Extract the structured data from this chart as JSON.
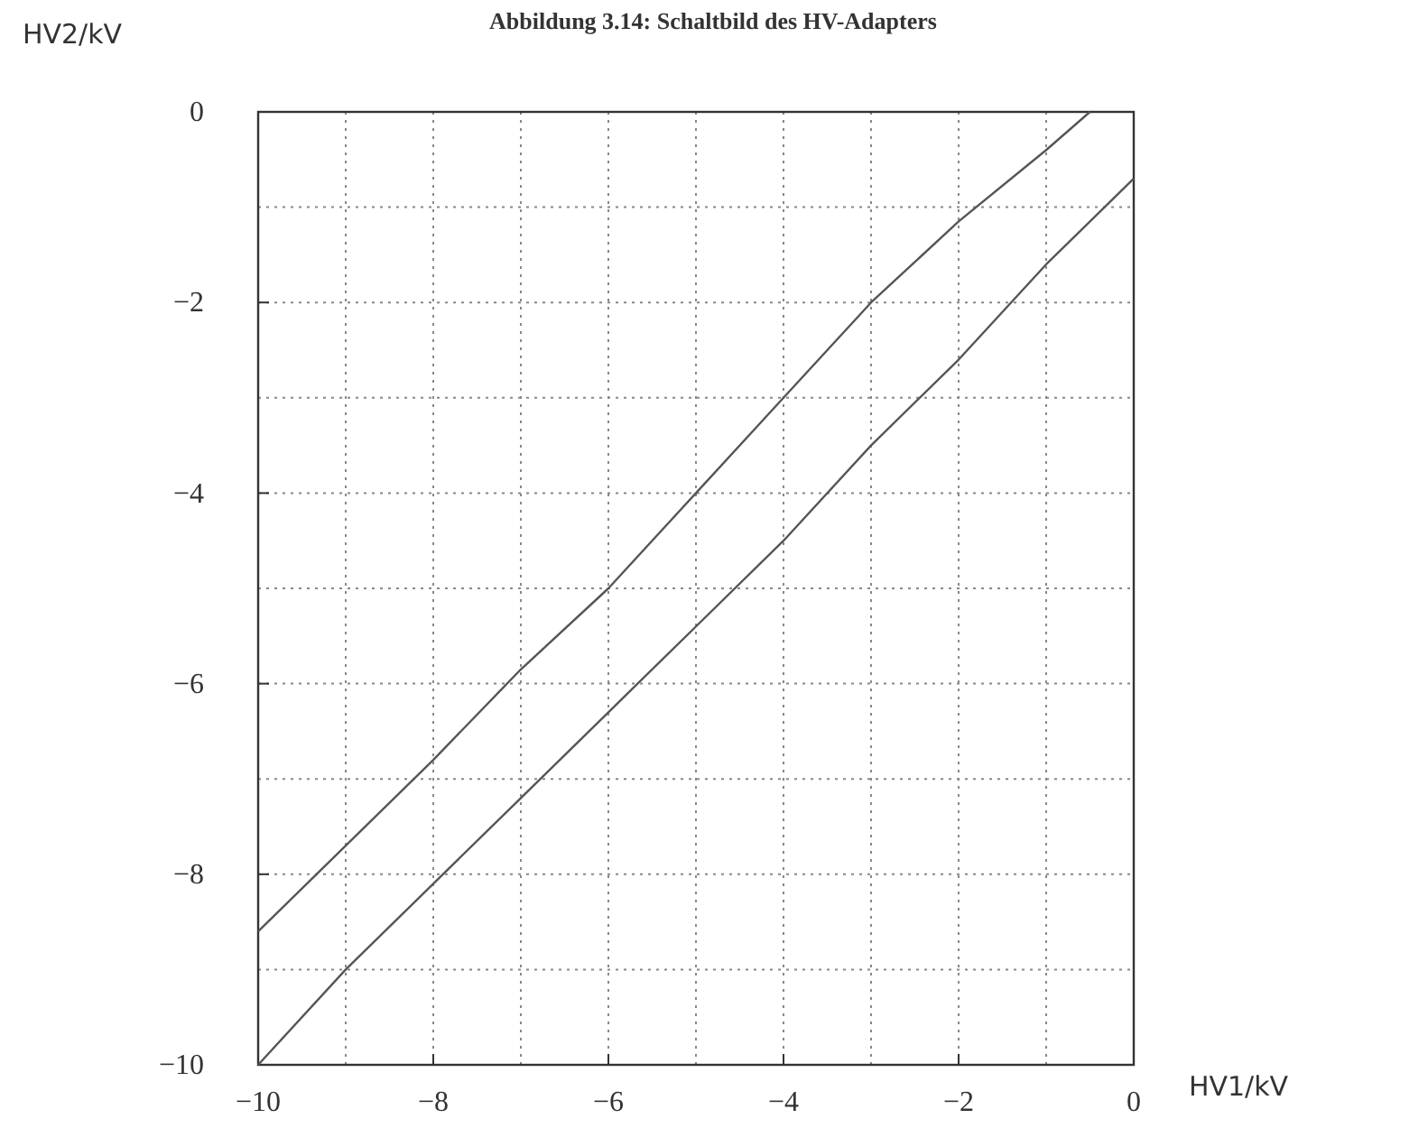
{
  "chart_data": {
    "type": "line",
    "title": "Abbildung 3.14: Schaltbild des HV-Adapters",
    "xlabel": "HV1/kV",
    "ylabel": "HV2/kV",
    "xlim": [
      -10,
      0
    ],
    "ylim": [
      -10,
      0
    ],
    "xticks": [
      -10,
      -8,
      -6,
      -4,
      -2,
      0
    ],
    "yticks": [
      -10,
      -8,
      -6,
      -4,
      -2,
      0
    ],
    "grid": true,
    "line_style": "solid",
    "series": [
      {
        "color": "#555555",
        "x": [
          -10,
          -9,
          -8,
          -7,
          -6,
          -5,
          -4,
          -3,
          -2,
          -1,
          -0.5
        ],
        "values": [
          -8.6,
          -7.7,
          -6.8,
          -5.85,
          -5,
          -4,
          -3,
          -2,
          -1.15,
          -0.4,
          0
        ]
      },
      {
        "color": "#555555",
        "x": [
          -10,
          -9,
          -8,
          -7,
          -6,
          -5,
          -4,
          -3,
          -2,
          -1,
          0
        ],
        "values": [
          -10,
          -9,
          -8.1,
          -7.2,
          -6.3,
          -5.4,
          -4.5,
          -3.5,
          -2.6,
          -1.6,
          -0.7
        ]
      }
    ]
  }
}
